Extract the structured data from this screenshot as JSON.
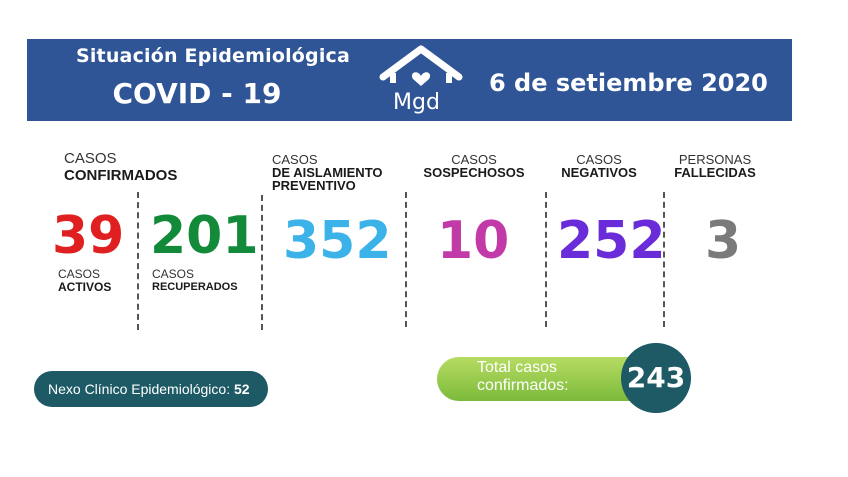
{
  "header": {
    "title": "Situación Epidemiológica",
    "subtitle": "COVID - 19",
    "logo_text": "Mgd",
    "date": "6 de setiembre 2020"
  },
  "confirmados": {
    "line1": "CASOS",
    "line2": "CONFIRMADOS"
  },
  "activos": {
    "value": "39",
    "line1": "CASOS",
    "line2": "ACTIVOS",
    "color": "#e02020"
  },
  "recuperados": {
    "value": "201",
    "line1": "CASOS",
    "line2": "RECUPERADOS",
    "color": "#138a3a"
  },
  "aislamiento": {
    "value": "352",
    "line1": "CASOS",
    "line2": "DE AISLAMIENTO",
    "line3": "PREVENTIVO",
    "color": "#3bb3e8"
  },
  "sospechosos": {
    "value": "10",
    "line1": "CASOS",
    "line2": "SOSPECHOSOS",
    "color": "#c23aa8"
  },
  "negativos": {
    "value": "252",
    "line1": "CASOS",
    "line2": "NEGATIVOS",
    "color": "#6a2bd8"
  },
  "fallecidas": {
    "value": "3",
    "line1": "PERSONAS",
    "line2": "FALLECIDAS",
    "color": "#7a7a7a"
  },
  "nexo": {
    "label": "Nexo Clínico Epidemiológico:",
    "value": "52"
  },
  "total": {
    "line1": "Total casos",
    "line2": "confirmados:",
    "value": "243"
  }
}
